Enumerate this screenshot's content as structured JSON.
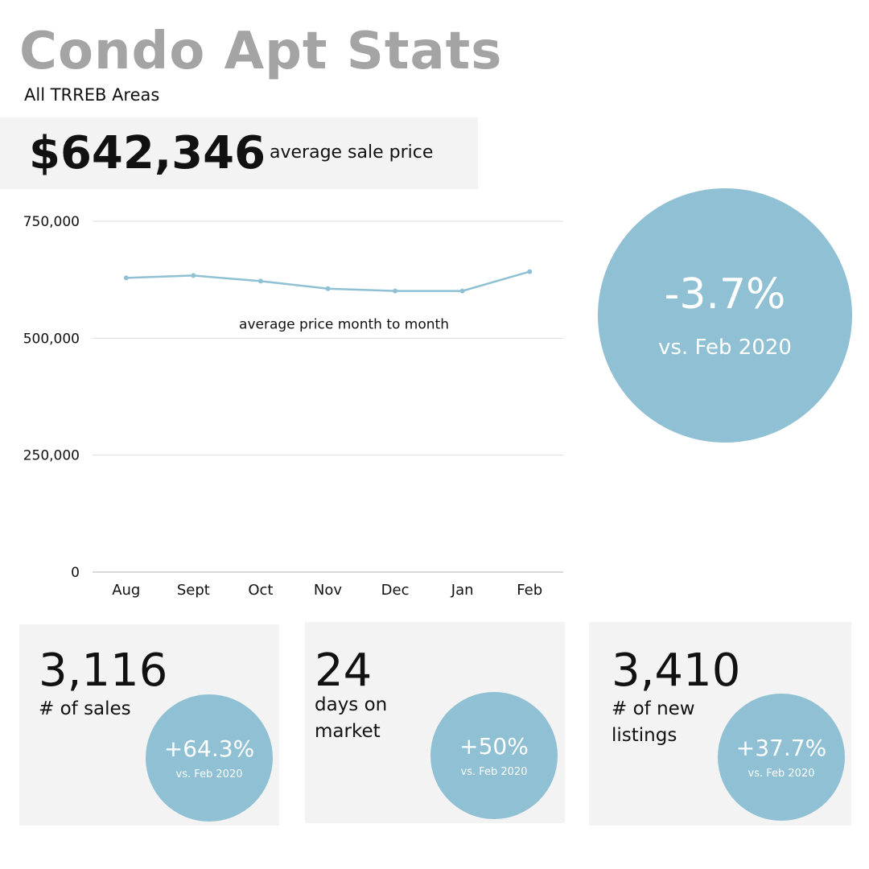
{
  "header": {
    "title": "Condo Apt Stats",
    "subtitle": "All TRREB Areas"
  },
  "price_banner": {
    "value": "$642,346",
    "label": "average sale price"
  },
  "yoy_circle": {
    "change": "-3.7%",
    "comparison": "vs. Feb 2020"
  },
  "cards": [
    {
      "value": "3,116",
      "label": "# of sales",
      "change": "+64.3%",
      "comparison": "vs. Feb 2020"
    },
    {
      "value": "24",
      "label": "days on market",
      "change": "+50%",
      "comparison": "vs. Feb 2020"
    },
    {
      "value": "3,410",
      "label": "# of new listings",
      "change": "+37.7%",
      "comparison": "vs. Feb 2020"
    }
  ],
  "colors": {
    "accent": "#8fc0d3",
    "title_gray": "#a4a4a4",
    "card_bg": "#f3f3f3",
    "line": "#8fc0d3",
    "grid": "#dddddd"
  },
  "chart_data": {
    "type": "line",
    "annotation": "average price month to month",
    "categories": [
      "Aug",
      "Sept",
      "Oct",
      "Nov",
      "Dec",
      "Jan",
      "Feb"
    ],
    "series": [
      {
        "values": [
          629000,
          634000,
          622000,
          606000,
          601000,
          601000,
          642346
        ]
      }
    ],
    "ylim": [
      0,
      750000
    ],
    "yticks": [
      0,
      250000,
      500000,
      750000
    ],
    "ytick_labels": [
      "0",
      "250,000",
      "500,000",
      "750,000"
    ],
    "xlabel": "",
    "ylabel": "",
    "grid": true,
    "legend": "none"
  }
}
